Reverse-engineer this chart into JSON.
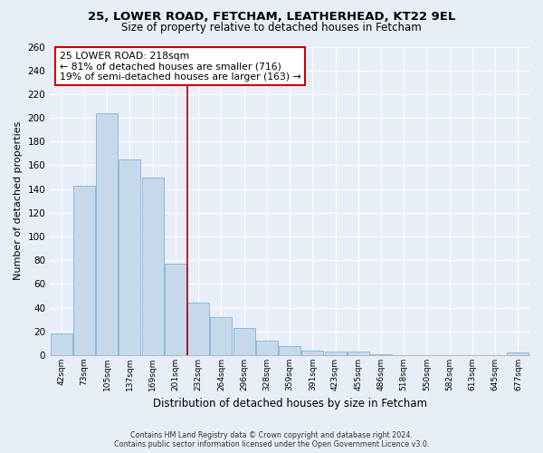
{
  "title1": "25, LOWER ROAD, FETCHAM, LEATHERHEAD, KT22 9EL",
  "title2": "Size of property relative to detached houses in Fetcham",
  "xlabel": "Distribution of detached houses by size in Fetcham",
  "ylabel": "Number of detached properties",
  "bin_labels": [
    "42sqm",
    "73sqm",
    "105sqm",
    "137sqm",
    "169sqm",
    "201sqm",
    "232sqm",
    "264sqm",
    "296sqm",
    "328sqm",
    "359sqm",
    "391sqm",
    "423sqm",
    "455sqm",
    "486sqm",
    "518sqm",
    "550sqm",
    "582sqm",
    "613sqm",
    "645sqm",
    "677sqm"
  ],
  "bar_heights": [
    18,
    143,
    204,
    165,
    150,
    77,
    44,
    32,
    23,
    12,
    8,
    4,
    3,
    3,
    1,
    0,
    0,
    0,
    0,
    0,
    2
  ],
  "bar_color": "#c6d9ec",
  "bar_edge_color": "#8fb8d8",
  "marker_line_color": "#aa0000",
  "annotation_line1": "25 LOWER ROAD: 218sqm",
  "annotation_line2": "← 81% of detached houses are smaller (716)",
  "annotation_line3": "19% of semi-detached houses are larger (163) →",
  "annotation_box_facecolor": "#ffffff",
  "annotation_box_edgecolor": "#cc0000",
  "ylim": [
    0,
    260
  ],
  "yticks": [
    0,
    20,
    40,
    60,
    80,
    100,
    120,
    140,
    160,
    180,
    200,
    220,
    240,
    260
  ],
  "footnote1": "Contains HM Land Registry data © Crown copyright and database right 2024.",
  "footnote2": "Contains public sector information licensed under the Open Government Licence v3.0.",
  "bg_color": "#e8eef8",
  "plot_bg_color": "#e8eef8",
  "grid_color": "#ffffff",
  "title1_fontsize": 9.5,
  "title2_fontsize": 8.5
}
